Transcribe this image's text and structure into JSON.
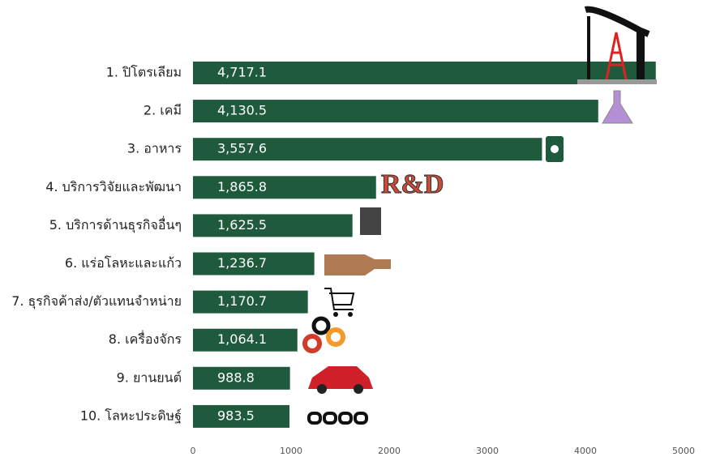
{
  "chart_data": {
    "type": "hbar",
    "categories": [
      "1. ปิโตรเลียม",
      "2. เคมี",
      "3. อาหาร",
      "4. บริการวิจัยและพัฒนา",
      "5. บริการด้านธุรกิจอื่นๆ",
      "6. แร่อโลหะและแก้ว",
      "7. ธุรกิจค้าส่ง/ตัวแทนจำหน่าย",
      "8. เครื่องจักร",
      "9. ยานยนต์",
      "10. โลหะประดิษฐ์"
    ],
    "values": [
      4717.1,
      4130.5,
      3557.6,
      1865.8,
      1625.5,
      1236.7,
      1170.7,
      1064.1,
      988.8,
      983.5
    ],
    "value_labels": [
      "4,717.1",
      "4,130.5",
      "3,557.6",
      "1,865.8",
      "1,625.5",
      "1,236.7",
      "1,170.7",
      "1,064.1",
      "988.8",
      "983.5"
    ],
    "color": "#1f5a3d",
    "xlim": [
      0,
      5000
    ],
    "xticks": [
      0,
      1000,
      2000,
      3000,
      4000,
      5000
    ],
    "grid": false
  }
}
